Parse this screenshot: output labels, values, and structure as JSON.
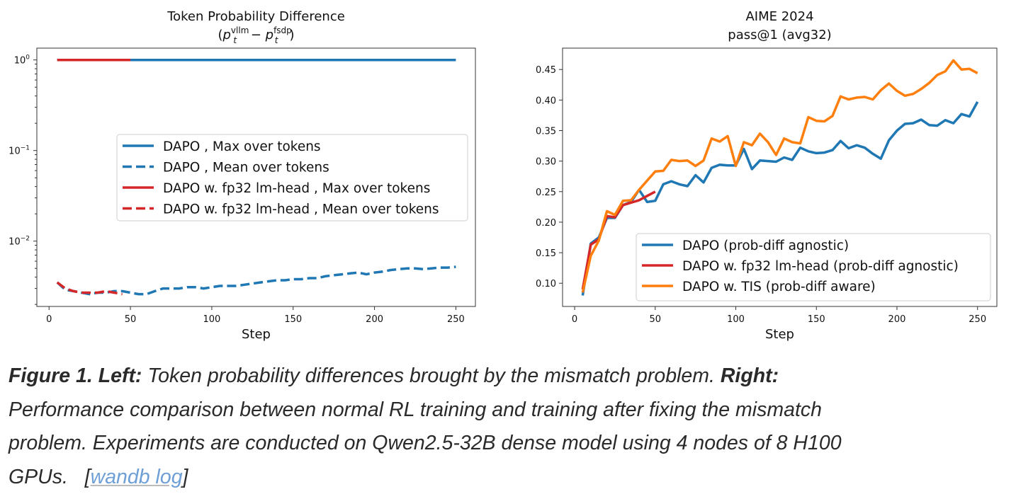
{
  "chart_data": [
    {
      "type": "line",
      "title": "Token Probability Difference",
      "subtitle_parts": {
        "open": "(",
        "p1": "p",
        "sub1": "t",
        "sup1": "vllm",
        "minus": " − ",
        "p2": "p",
        "sub2": "t",
        "sup2": "fsdp",
        "close": ")"
      },
      "xlabel": "Step",
      "ylabel": "",
      "yscale": "log",
      "xlim": [
        -7.5,
        262
      ],
      "ylim": [
        0.0019,
        1.35
      ],
      "xticks": [
        0,
        50,
        100,
        150,
        200,
        250
      ],
      "yticks": [
        {
          "value": 1,
          "base": "10",
          "exp": "0"
        },
        {
          "value": 0.1,
          "base": "10",
          "exp": "−1"
        },
        {
          "value": 0.01,
          "base": "10",
          "exp": "−2"
        }
      ],
      "legend_position": "center-right",
      "series": [
        {
          "name": "DAPO , Max over tokens",
          "color": "#1f77b4",
          "style": "solid",
          "x": [
            5,
            250
          ],
          "y": [
            1,
            1
          ]
        },
        {
          "name": "DAPO , Mean over tokens",
          "color": "#1f77b4",
          "style": "dashed",
          "x": [
            5,
            10,
            15,
            20,
            25,
            30,
            35,
            40,
            45,
            50,
            55,
            60,
            65,
            70,
            75,
            80,
            85,
            90,
            95,
            100,
            105,
            110,
            115,
            120,
            125,
            130,
            135,
            140,
            145,
            150,
            155,
            160,
            165,
            170,
            175,
            180,
            185,
            190,
            195,
            200,
            205,
            210,
            215,
            220,
            225,
            230,
            235,
            240,
            245,
            250
          ],
          "y": [
            0.0035,
            0.0029,
            0.0028,
            0.0027,
            0.0026,
            0.0027,
            0.0027,
            0.0028,
            0.0028,
            0.0027,
            0.0026,
            0.0026,
            0.0028,
            0.003,
            0.003,
            0.003,
            0.0031,
            0.0031,
            0.003,
            0.0031,
            0.0032,
            0.0032,
            0.0032,
            0.0033,
            0.0034,
            0.0035,
            0.0036,
            0.0037,
            0.0037,
            0.0038,
            0.0038,
            0.0039,
            0.0039,
            0.0041,
            0.0042,
            0.0043,
            0.0044,
            0.0045,
            0.0043,
            0.0045,
            0.0046,
            0.0048,
            0.0049,
            0.005,
            0.005,
            0.0049,
            0.005,
            0.0051,
            0.0051,
            0.0052
          ]
        },
        {
          "name": "DAPO w. fp32 lm-head , Max over tokens",
          "color": "#d62728",
          "style": "solid",
          "x": [
            5,
            50
          ],
          "y": [
            1,
            1
          ]
        },
        {
          "name": "DAPO w. fp32 lm-head , Mean over tokens",
          "color": "#d62728",
          "style": "dashed",
          "x": [
            5,
            10,
            15,
            20,
            25,
            30,
            35,
            40,
            45
          ],
          "y": [
            0.0035,
            0.003,
            0.0028,
            0.0027,
            0.0027,
            0.0027,
            0.0028,
            0.0027,
            0.0026
          ]
        }
      ]
    },
    {
      "type": "line",
      "title": "AIME 2024",
      "subtitle": "pass@1 (avg32)",
      "xlabel": "Step",
      "ylabel": "",
      "yscale": "linear",
      "xlim": [
        -7.5,
        262
      ],
      "ylim": [
        0.062,
        0.485
      ],
      "xticks": [
        0,
        50,
        100,
        150,
        200,
        250
      ],
      "yticks": [
        0.1,
        0.15,
        0.2,
        0.25,
        0.3,
        0.35,
        0.4,
        0.45
      ],
      "legend_position": "lower-right",
      "series": [
        {
          "name": "DAPO (prob-diff agnostic)",
          "color": "#1f77b4",
          "style": "solid",
          "x": [
            5,
            10,
            15,
            20,
            25,
            30,
            35,
            40,
            45,
            50,
            55,
            60,
            65,
            70,
            75,
            80,
            85,
            90,
            95,
            100,
            105,
            110,
            115,
            120,
            125,
            130,
            135,
            140,
            145,
            150,
            155,
            160,
            165,
            170,
            175,
            180,
            185,
            190,
            195,
            200,
            205,
            210,
            215,
            220,
            225,
            230,
            235,
            240,
            245,
            250
          ],
          "y": [
            0.08,
            0.165,
            0.175,
            0.207,
            0.207,
            0.228,
            0.233,
            0.253,
            0.233,
            0.235,
            0.262,
            0.267,
            0.262,
            0.259,
            0.277,
            0.265,
            0.289,
            0.294,
            0.293,
            0.293,
            0.32,
            0.287,
            0.301,
            0.3,
            0.299,
            0.306,
            0.302,
            0.322,
            0.316,
            0.313,
            0.314,
            0.318,
            0.333,
            0.321,
            0.326,
            0.322,
            0.312,
            0.304,
            0.334,
            0.35,
            0.361,
            0.362,
            0.368,
            0.359,
            0.358,
            0.367,
            0.362,
            0.377,
            0.373,
            0.397
          ]
        },
        {
          "name": "DAPO w. fp32 lm-head (prob-diff agnostic)",
          "color": "#d62728",
          "style": "solid",
          "x": [
            5,
            10,
            15,
            20,
            25,
            30,
            35,
            40,
            45,
            50
          ],
          "y": [
            0.09,
            0.163,
            0.172,
            0.21,
            0.208,
            0.228,
            0.232,
            0.236,
            0.243,
            0.25
          ]
        },
        {
          "name": "DAPO w. TIS (prob-diff aware)",
          "color": "#ff7f0e",
          "style": "solid",
          "x": [
            5,
            10,
            15,
            20,
            25,
            30,
            35,
            40,
            45,
            50,
            55,
            60,
            65,
            70,
            75,
            80,
            85,
            90,
            95,
            100,
            105,
            110,
            115,
            120,
            125,
            130,
            135,
            140,
            145,
            150,
            155,
            160,
            165,
            170,
            175,
            180,
            185,
            190,
            195,
            200,
            205,
            210,
            215,
            220,
            225,
            230,
            235,
            240,
            245,
            250
          ],
          "y": [
            0.085,
            0.145,
            0.17,
            0.218,
            0.212,
            0.235,
            0.236,
            0.253,
            0.268,
            0.283,
            0.284,
            0.302,
            0.3,
            0.301,
            0.292,
            0.301,
            0.337,
            0.332,
            0.341,
            0.292,
            0.331,
            0.326,
            0.345,
            0.331,
            0.31,
            0.337,
            0.331,
            0.329,
            0.372,
            0.366,
            0.365,
            0.374,
            0.406,
            0.401,
            0.404,
            0.405,
            0.401,
            0.416,
            0.427,
            0.415,
            0.407,
            0.41,
            0.418,
            0.428,
            0.441,
            0.447,
            0.465,
            0.45,
            0.451,
            0.444
          ]
        }
      ]
    }
  ],
  "caption": {
    "fig_label": "Figure 1. Left:",
    "left_text": " Token probability differences brought by the mismatch problem. ",
    "right_label": "Right:",
    "line2": "Performance comparison between normal RL training and training after fixing the mismatch",
    "line3": "problem. Experiments are conducted on Qwen2.5-32B dense model using 4 nodes of 8 H100",
    "line4_prefix": "GPUs.   [",
    "link_text": "wandb log",
    "line4_suffix": "]"
  },
  "colors": {
    "blue": "#1f77b4",
    "red": "#d62728",
    "orange": "#ff7f0e",
    "caption_text": "#2a2a2a",
    "link": "#6e9fd6"
  }
}
